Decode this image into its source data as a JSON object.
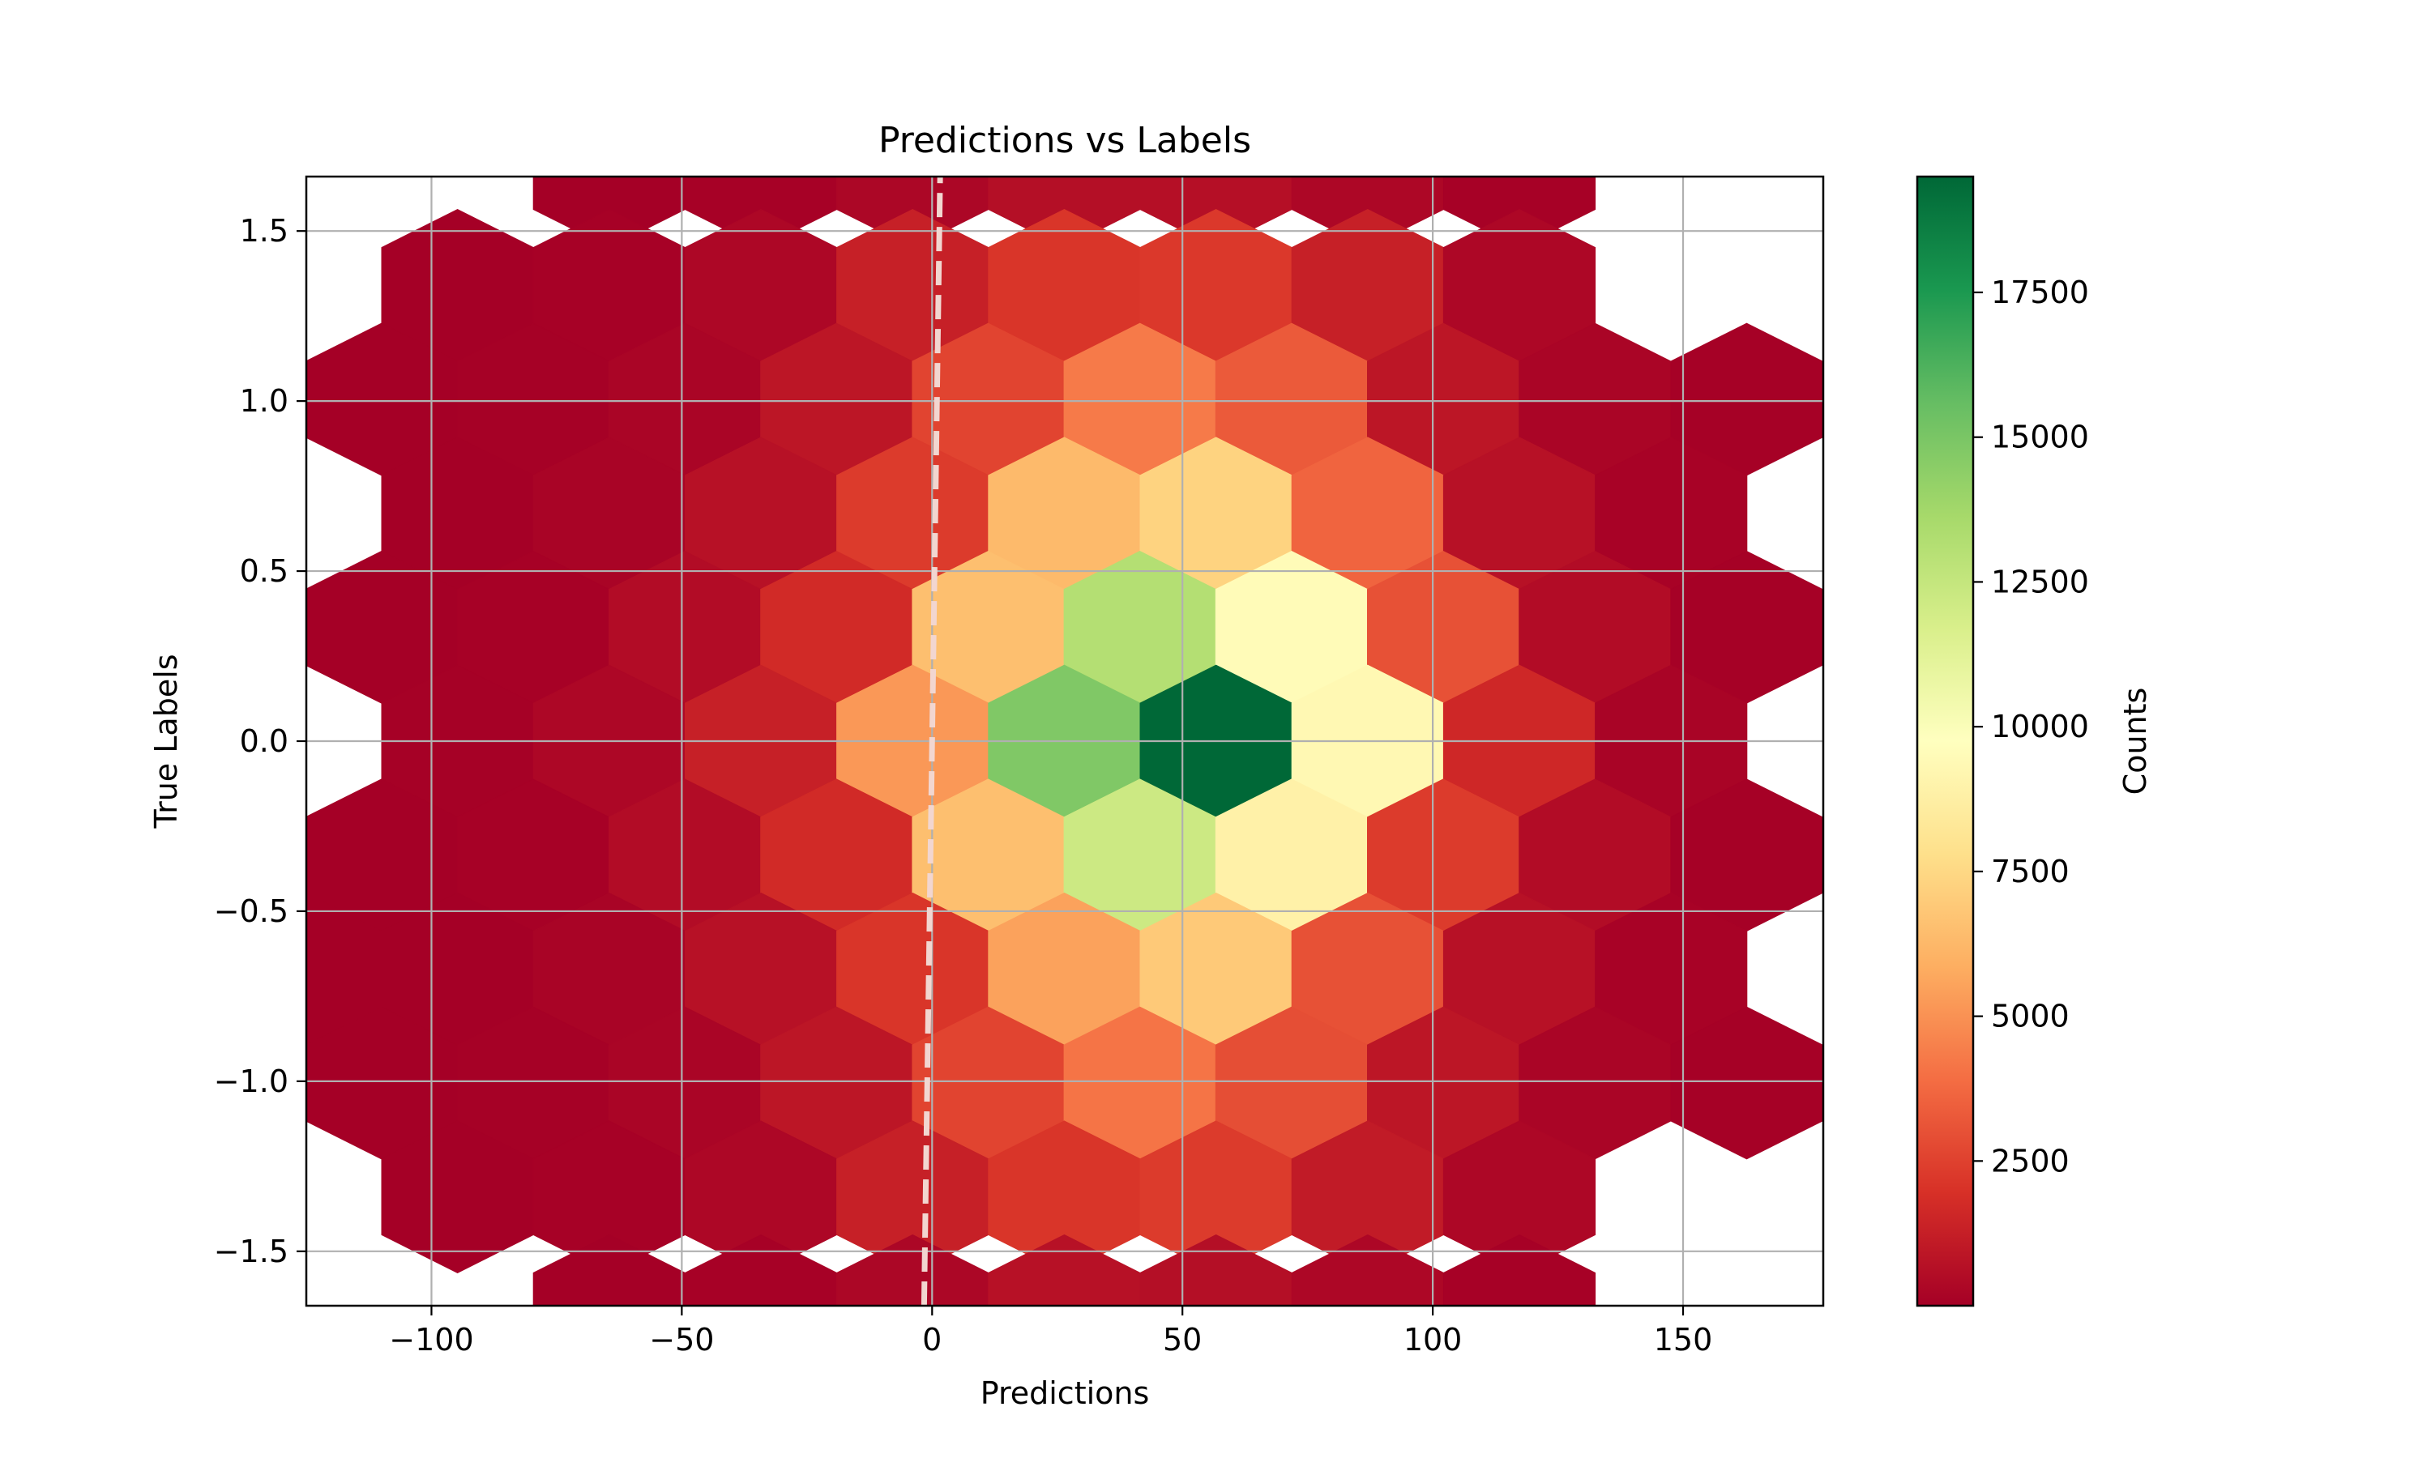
{
  "chart_data": {
    "type": "hexbin",
    "title": "Predictions vs Labels",
    "xlabel": "Predictions",
    "ylabel": "True Labels",
    "xlim": [
      -125,
      178
    ],
    "ylim": [
      -1.66,
      1.66
    ],
    "xticks": [
      -100,
      -50,
      0,
      50,
      100,
      150
    ],
    "xtick_labels": [
      "−100",
      "−50",
      "0",
      "50",
      "100",
      "150"
    ],
    "yticks": [
      -1.5,
      -1.0,
      -0.5,
      0.0,
      0.5,
      1.0,
      1.5
    ],
    "ytick_labels": [
      "−1.5",
      "−1.0",
      "−0.5",
      "0.0",
      "0.5",
      "1.0",
      "1.5"
    ],
    "grid": true,
    "colormap": "RdYlGn",
    "colorbar": {
      "label": "Counts",
      "range": [
        1,
        19500
      ],
      "ticks": [
        2500,
        5000,
        7500,
        10000,
        12500,
        15000,
        17500
      ],
      "tick_labels": [
        "2500",
        "5000",
        "7500",
        "10000",
        "12500",
        "15000",
        "17500"
      ]
    },
    "hexbin": {
      "x_step": 30.3,
      "y_step": 0.335,
      "rows": [
        {
          "y": 1.675,
          "x": [
            -64.5,
            -34.2,
            -3.9,
            26.4,
            56.7,
            87.0,
            117.3
          ],
          "counts": [
            10,
            60,
            280,
            600,
            620,
            300,
            60
          ]
        },
        {
          "y": 1.34,
          "x": [
            -94.8,
            -64.5,
            -34.2,
            -3.9,
            26.4,
            56.7,
            87.0,
            117.3
          ],
          "counts": [
            10,
            60,
            300,
            1300,
            2100,
            2200,
            1300,
            300
          ]
        },
        {
          "y": 1.005,
          "x": [
            -110.0,
            -79.7,
            -49.4,
            -19.1,
            11.2,
            41.5,
            71.8,
            102.1,
            132.4,
            162.7
          ],
          "counts": [
            5,
            40,
            200,
            900,
            2600,
            4300,
            3300,
            900,
            200,
            30
          ]
        },
        {
          "y": 0.67,
          "x": [
            -94.8,
            -64.5,
            -34.2,
            -3.9,
            26.4,
            56.7,
            87.0,
            117.3,
            147.6
          ],
          "counts": [
            20,
            150,
            700,
            2300,
            6300,
            7300,
            3600,
            700,
            100
          ]
        },
        {
          "y": 0.335,
          "x": [
            -110.0,
            -79.7,
            -49.4,
            -19.1,
            11.2,
            41.5,
            71.8,
            102.1,
            132.4,
            162.7
          ],
          "counts": [
            5,
            60,
            500,
            1700,
            6500,
            13100,
            9500,
            3000,
            500,
            50
          ]
        },
        {
          "y": 0.0,
          "x": [
            -94.8,
            -64.5,
            -34.2,
            -3.9,
            26.4,
            56.7,
            87.0,
            117.3,
            147.6
          ],
          "counts": [
            40,
            300,
            1300,
            5200,
            14800,
            19500,
            9300,
            1600,
            150
          ]
        },
        {
          "y": -0.335,
          "x": [
            -110.0,
            -79.7,
            -49.4,
            -19.1,
            11.2,
            41.5,
            71.8,
            102.1,
            132.4,
            162.7
          ],
          "counts": [
            5,
            60,
            500,
            1700,
            6500,
            12200,
            8900,
            2300,
            500,
            50
          ]
        },
        {
          "y": -0.67,
          "x": [
            -125.0,
            -94.8,
            -64.5,
            -34.2,
            -3.9,
            26.4,
            56.7,
            87.0,
            117.3,
            147.6
          ],
          "counts": [
            5,
            20,
            150,
            700,
            2100,
            5500,
            6900,
            3000,
            700,
            100
          ]
        },
        {
          "y": -1.005,
          "x": [
            -110.0,
            -79.7,
            -49.4,
            -19.1,
            11.2,
            41.5,
            71.8,
            102.1,
            132.4,
            162.7
          ],
          "counts": [
            5,
            40,
            200,
            900,
            2600,
            4100,
            2900,
            900,
            200,
            30
          ]
        },
        {
          "y": -1.34,
          "x": [
            -94.8,
            -64.5,
            -34.2,
            -3.9,
            26.4,
            56.7,
            87.0,
            117.3
          ],
          "counts": [
            10,
            60,
            300,
            1300,
            2100,
            2300,
            1100,
            300
          ]
        },
        {
          "y": -1.675,
          "x": [
            -64.5,
            -34.2,
            -3.9,
            26.4,
            56.7,
            87.0,
            117.3
          ],
          "counts": [
            10,
            60,
            280,
            700,
            600,
            300,
            60
          ]
        }
      ]
    },
    "reference_line": {
      "style": "dashed",
      "color": "#f2d6d0",
      "points": [
        [
          -1.6,
          -1.66
        ],
        [
          1.6,
          1.66
        ]
      ]
    }
  }
}
